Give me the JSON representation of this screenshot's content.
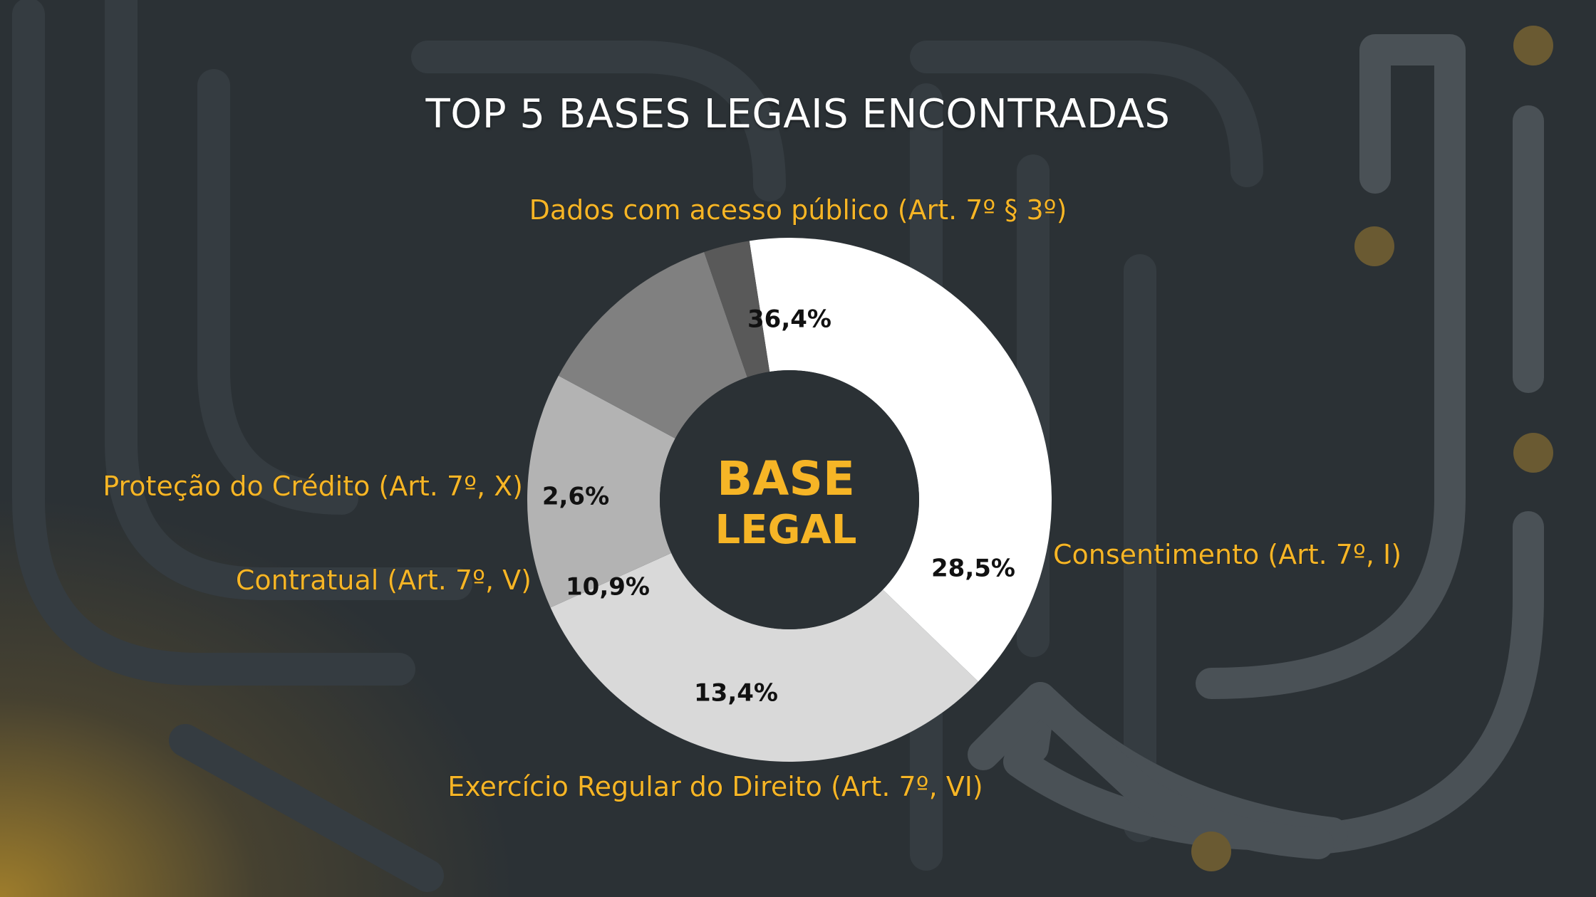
{
  "page": {
    "title": "TOP 5 BASES LEGAIS ENCONTRADAS",
    "center_label_line1": "BASE",
    "center_label_line2": "LEGAL"
  },
  "colors": {
    "background": "#2b3135",
    "accent": "#f6b526",
    "hole": "#2b3135",
    "decor": "#4a5156"
  },
  "chart_data": {
    "type": "pie",
    "donut": true,
    "title": "TOP 5 BASES LEGAIS ENCONTRADAS",
    "center_label": "BASE LEGAL",
    "slices": [
      {
        "category": "Dados com acesso público (Art. 7º § 3º)",
        "value": 36.4,
        "display": "36,4%",
        "color": "#ffffff"
      },
      {
        "category": "Consentimento (Art. 7º, I)",
        "value": 28.5,
        "display": "28,5%",
        "color": "#d9d9d9"
      },
      {
        "category": "Exercício Regular do Direito (Art. 7º, VI)",
        "value": 13.4,
        "display": "13,4%",
        "color": "#b3b3b3"
      },
      {
        "category": "Contratual (Art. 7º, V)",
        "value": 10.9,
        "display": "10,9%",
        "color": "#808080"
      },
      {
        "category": "Proteção do Crédito (Art. 7º, X)",
        "value": 2.6,
        "display": "2,6%",
        "color": "#595959"
      }
    ]
  }
}
